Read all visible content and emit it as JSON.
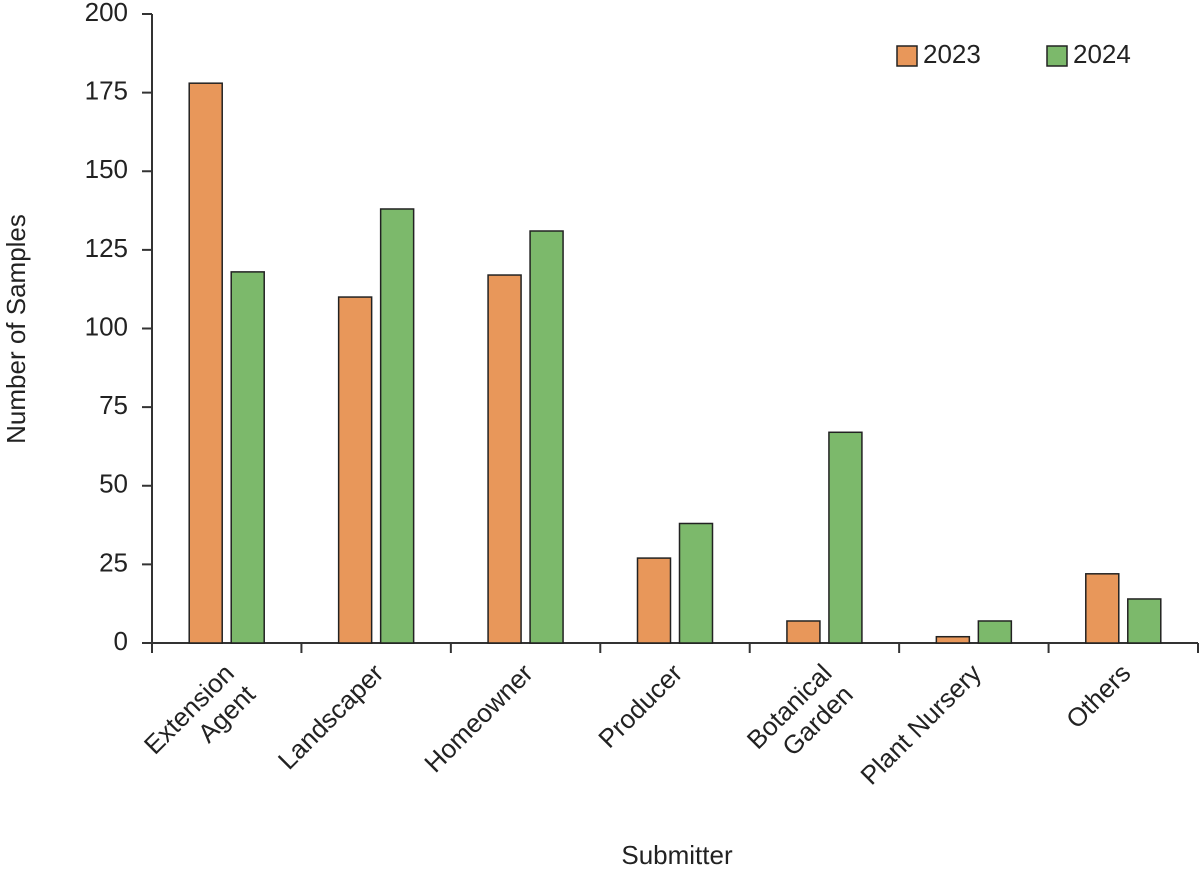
{
  "chart_data": {
    "type": "bar",
    "categories": [
      "Extension\nAgent",
      "Landscaper",
      "Homeowner",
      "Producer",
      "Botanical\nGarden",
      "Plant Nursery",
      "Others"
    ],
    "series": [
      {
        "name": "2023",
        "color": "#e8975a",
        "values": [
          178,
          110,
          117,
          27,
          7,
          2,
          22
        ]
      },
      {
        "name": "2024",
        "color": "#7cb96b",
        "values": [
          118,
          138,
          131,
          38,
          67,
          7,
          14
        ]
      }
    ],
    "xlabel": "Submitter",
    "ylabel": "Number of Samples",
    "ylim": [
      0,
      200
    ],
    "yticks": [
      0,
      25,
      50,
      75,
      100,
      125,
      150,
      175,
      200
    ],
    "grid": false,
    "legend": "upper right"
  }
}
